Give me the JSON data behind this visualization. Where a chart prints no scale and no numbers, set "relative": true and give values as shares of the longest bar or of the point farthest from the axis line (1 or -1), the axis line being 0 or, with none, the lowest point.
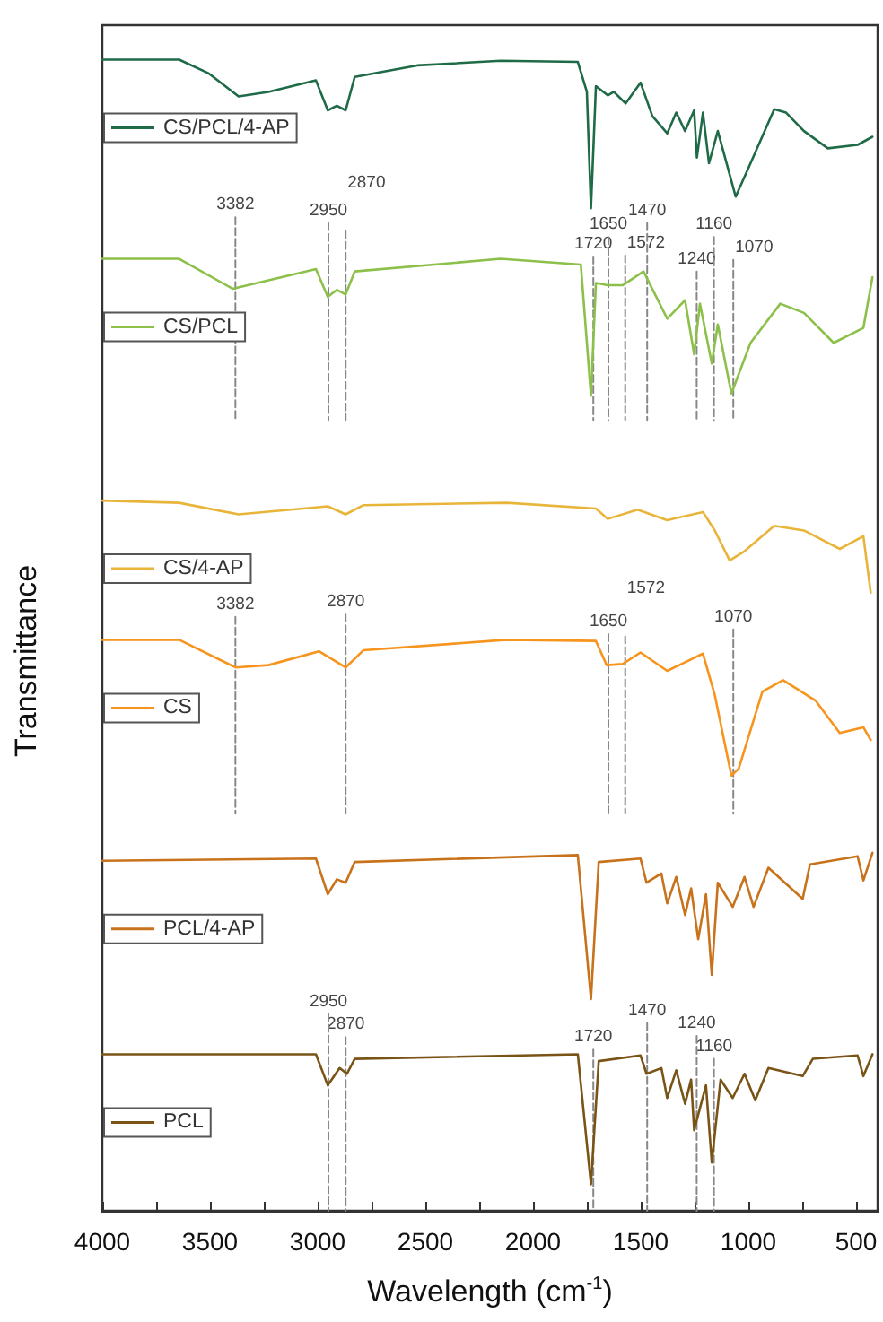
{
  "chart_data": {
    "type": "line",
    "relative": true,
    "xlabel": "Wavelength (cm$^{-1}$)",
    "ylabel": "Transmittance",
    "xlim": [
      4000,
      400
    ],
    "xticks": [
      4000,
      {
        "value": 3750,
        "label": null
      },
      3500,
      {
        "value": 3250,
        "label": null
      },
      3000,
      {
        "value": 2750,
        "label": null
      },
      2500,
      {
        "value": 2250,
        "label": null
      },
      2000,
      {
        "value": 1750,
        "label": null
      },
      1500,
      {
        "value": 1250,
        "label": null
      },
      1000,
      {
        "value": 750,
        "label": null
      },
      500
    ],
    "grid": false,
    "legend": "left",
    "marker": "none",
    "line_style": "solid",
    "series": [
      {
        "name": "CS/PCL/4-AP",
        "color": "#1f6b48",
        "x": [
          4000,
          3643,
          3505,
          3367,
          3229,
          3008,
          2953,
          2911,
          2870,
          2828,
          2538,
          2151,
          1792,
          1750,
          1731,
          1708,
          1653,
          1625,
          1570,
          1501,
          1446,
          1377,
          1335,
          1294,
          1252,
          1239,
          1211,
          1183,
          1142,
          1059,
          990,
          880,
          825,
          742,
          631,
          493,
          424
        ],
        "values": [
          1.0,
          1.0,
          0.988,
          0.968,
          0.972,
          0.982,
          0.956,
          0.96,
          0.956,
          0.985,
          0.995,
          0.999,
          0.998,
          0.972,
          0.871,
          0.977,
          0.969,
          0.972,
          0.962,
          0.98,
          0.951,
          0.936,
          0.954,
          0.938,
          0.956,
          0.915,
          0.954,
          0.91,
          0.938,
          0.881,
          0.91,
          0.957,
          0.954,
          0.938,
          0.923,
          0.926,
          0.933
        ]
      },
      {
        "name": "CS/PCL",
        "color": "#8cc04a",
        "x": [
          4000,
          3643,
          3395,
          3008,
          2953,
          2911,
          2870,
          2828,
          2151,
          1778,
          1731,
          1708,
          1653,
          1584,
          1487,
          1377,
          1294,
          1252,
          1225,
          1170,
          1142,
          1079,
          990,
          852,
          742,
          604,
          466,
          424
        ],
        "values": [
          0.827,
          0.827,
          0.801,
          0.818,
          0.794,
          0.8,
          0.796,
          0.816,
          0.827,
          0.822,
          0.708,
          0.806,
          0.804,
          0.804,
          0.816,
          0.775,
          0.791,
          0.744,
          0.788,
          0.736,
          0.77,
          0.71,
          0.754,
          0.788,
          0.78,
          0.754,
          0.767,
          0.811
        ]
      },
      {
        "name": "CS/4-AP",
        "color": "#e8b53a",
        "x": [
          4000,
          3643,
          3367,
          2953,
          2870,
          2787,
          2122,
          1708,
          1653,
          1515,
          1377,
          1211,
          1156,
          1087,
          1018,
          880,
          742,
          576,
          466,
          432
        ],
        "values": [
          0.617,
          0.615,
          0.605,
          0.612,
          0.605,
          0.613,
          0.615,
          0.61,
          0.601,
          0.609,
          0.6,
          0.607,
          0.591,
          0.565,
          0.573,
          0.595,
          0.591,
          0.575,
          0.586,
          0.537
        ]
      },
      {
        "name": "CS",
        "color": "#f7941d",
        "x": [
          4000,
          3643,
          3381,
          3229,
          2994,
          2870,
          2787,
          2122,
          1708,
          1658,
          1584,
          1501,
          1377,
          1211,
          1156,
          1079,
          1045,
          935,
          839,
          687,
          576,
          466,
          432
        ],
        "values": [
          0.496,
          0.496,
          0.472,
          0.474,
          0.486,
          0.472,
          0.487,
          0.496,
          0.495,
          0.474,
          0.475,
          0.485,
          0.469,
          0.484,
          0.448,
          0.378,
          0.384,
          0.451,
          0.461,
          0.443,
          0.415,
          0.42,
          0.409
        ]
      },
      {
        "name": "PCL/4-AP",
        "color": "#c8731c",
        "x": [
          4000,
          3008,
          2953,
          2911,
          2870,
          2828,
          1792,
          1731,
          1695,
          1501,
          1473,
          1404,
          1377,
          1335,
          1294,
          1266,
          1233,
          1197,
          1170,
          1142,
          1073,
          1018,
          976,
          907,
          748,
          714,
          493,
          466,
          424
        ],
        "values": [
          0.304,
          0.306,
          0.275,
          0.288,
          0.285,
          0.303,
          0.309,
          0.184,
          0.303,
          0.306,
          0.285,
          0.293,
          0.267,
          0.29,
          0.257,
          0.28,
          0.236,
          0.275,
          0.205,
          0.285,
          0.264,
          0.29,
          0.264,
          0.298,
          0.271,
          0.301,
          0.308,
          0.287,
          0.311
        ]
      },
      {
        "name": "PCL",
        "color": "#7a5416",
        "x": [
          4000,
          3008,
          2953,
          2898,
          2864,
          2828,
          1792,
          1731,
          1695,
          1501,
          1473,
          1404,
          1377,
          1335,
          1294,
          1266,
          1252,
          1197,
          1170,
          1129,
          1073,
          1018,
          968,
          907,
          748,
          701,
          493,
          466,
          424
        ],
        "values": [
          0.136,
          0.136,
          0.109,
          0.124,
          0.119,
          0.132,
          0.136,
          0.023,
          0.13,
          0.135,
          0.119,
          0.124,
          0.098,
          0.122,
          0.093,
          0.114,
          0.07,
          0.109,
          0.042,
          0.114,
          0.098,
          0.119,
          0.096,
          0.124,
          0.117,
          0.132,
          0.135,
          0.117,
          0.136
        ]
      },
      {
        "color": "#888888",
        "line_style": "dashed",
        "x": [
          3382,
          3382
        ],
        "values": [
          0.863,
          0.687
        ]
      },
      {
        "color": "#888888",
        "line_style": "dashed",
        "x": [
          2950,
          2950
        ],
        "values": [
          0.858,
          0.687
        ]
      },
      {
        "color": "#888888",
        "line_style": "dashed",
        "x": [
          2870,
          2870
        ],
        "values": [
          0.851,
          0.687
        ]
      },
      {
        "color": "#888888",
        "line_style": "dashed",
        "x": [
          1720,
          1720
        ],
        "values": [
          0.829,
          0.687
        ]
      },
      {
        "color": "#888888",
        "line_style": "dashed",
        "x": [
          1650,
          1650
        ],
        "values": [
          0.846,
          0.687
        ]
      },
      {
        "color": "#888888",
        "line_style": "dashed",
        "x": [
          1572,
          1572
        ],
        "values": [
          0.83,
          0.687
        ]
      },
      {
        "color": "#888888",
        "line_style": "dashed",
        "x": [
          1470,
          1470
        ],
        "values": [
          0.858,
          0.687
        ]
      },
      {
        "color": "#888888",
        "line_style": "dashed",
        "x": [
          1240,
          1240
        ],
        "values": [
          0.816,
          0.687
        ]
      },
      {
        "color": "#888888",
        "line_style": "dashed",
        "x": [
          1160,
          1160
        ],
        "values": [
          0.846,
          0.687
        ]
      },
      {
        "color": "#888888",
        "line_style": "dashed",
        "x": [
          1070,
          1070
        ],
        "values": [
          0.826,
          0.687
        ]
      },
      {
        "color": "#888888",
        "line_style": "dashed",
        "x": [
          3382,
          3382
        ],
        "values": [
          0.516,
          0.345
        ]
      },
      {
        "color": "#888888",
        "line_style": "dashed",
        "x": [
          2870,
          2870
        ],
        "values": [
          0.518,
          0.345
        ]
      },
      {
        "color": "#888888",
        "line_style": "dashed",
        "x": [
          1650,
          1650
        ],
        "values": [
          0.501,
          0.345
        ]
      },
      {
        "color": "#888888",
        "line_style": "dashed",
        "x": [
          1572,
          1572
        ],
        "values": [
          0.499,
          0.345
        ]
      },
      {
        "color": "#888888",
        "line_style": "dashed",
        "x": [
          1070,
          1070
        ],
        "values": [
          0.505,
          0.345
        ]
      },
      {
        "color": "#888888",
        "line_style": "dashed",
        "x": [
          2950,
          2950
        ],
        "values": [
          0.171,
          0.0
        ]
      },
      {
        "color": "#888888",
        "line_style": "dashed",
        "x": [
          2870,
          2870
        ],
        "values": [
          0.151,
          0.0
        ]
      },
      {
        "color": "#888888",
        "line_style": "dashed",
        "x": [
          1720,
          1720
        ],
        "values": [
          0.14,
          0.0
        ]
      },
      {
        "color": "#888888",
        "line_style": "dashed",
        "x": [
          1470,
          1470
        ],
        "values": [
          0.163,
          0.0
        ]
      },
      {
        "color": "#888888",
        "line_style": "dashed",
        "x": [
          1240,
          1240
        ],
        "values": [
          0.152,
          0.0
        ]
      },
      {
        "color": "#888888",
        "line_style": "dashed",
        "x": [
          1160,
          1160
        ],
        "values": [
          0.132,
          0.0
        ]
      }
    ],
    "annotations": [
      "3382",
      "2950",
      "2870",
      "1720",
      "1650",
      "1572",
      "1470",
      "1240",
      "1160",
      "1070",
      "3382",
      "2870",
      "1650",
      "1572",
      "1070",
      "2950",
      "2870",
      "1720",
      "1470",
      "1240",
      "1160"
    ]
  }
}
